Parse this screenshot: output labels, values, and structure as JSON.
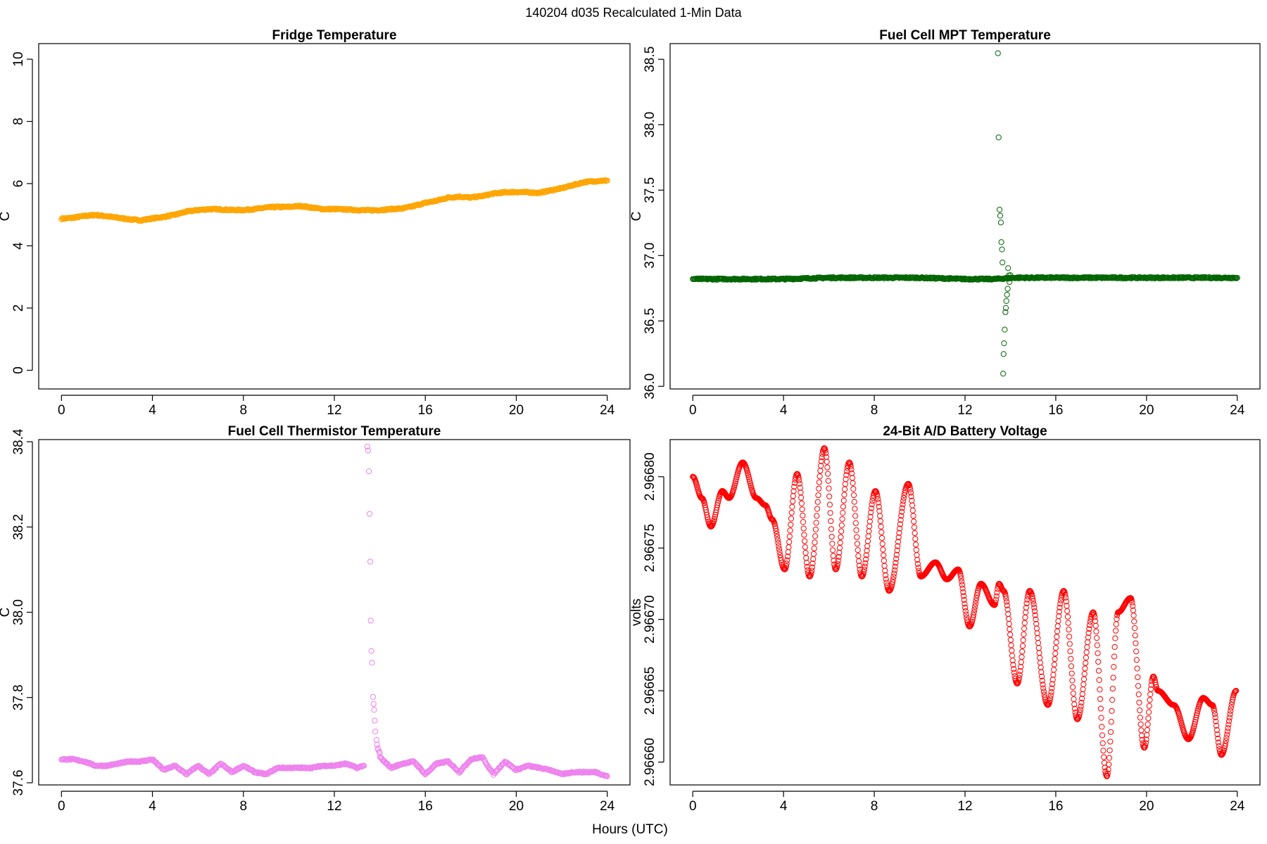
{
  "figure": {
    "title": "140204   d035   Recalculated 1-Min Data",
    "xlabel": "Hours (UTC)"
  },
  "chart_data": [
    {
      "type": "scatter",
      "title": "Fridge Temperature",
      "xlabel": "",
      "ylabel": "C",
      "xlim": [
        -1,
        25
      ],
      "ylim": [
        -0.6,
        10.5
      ],
      "xticks": [
        0,
        4,
        8,
        12,
        16,
        20,
        24
      ],
      "yticks": [
        0,
        2,
        4,
        6,
        8,
        10
      ],
      "yticklabels": [
        "0",
        "2",
        "4",
        "6",
        "8",
        "10"
      ],
      "color": "#FFA500",
      "grid": false,
      "series": [
        {
          "x": [
            0,
            0.5,
            1,
            1.5,
            2,
            2.5,
            3,
            3.5,
            4,
            4.5,
            5,
            5.5,
            6,
            6.5,
            7,
            7.5,
            8,
            8.5,
            9,
            9.5,
            10,
            10.5,
            11,
            11.5,
            12,
            12.5,
            13,
            13.5,
            14,
            14.5,
            15,
            15.5,
            16,
            16.5,
            17,
            17.5,
            18,
            18.5,
            19,
            19.5,
            20,
            20.5,
            21,
            21.5,
            22,
            22.5,
            23,
            23.5,
            24
          ],
          "y": [
            4.87,
            4.9,
            4.96,
            4.99,
            4.95,
            4.9,
            4.85,
            4.82,
            4.88,
            4.93,
            5.0,
            5.1,
            5.15,
            5.18,
            5.17,
            5.15,
            5.15,
            5.18,
            5.23,
            5.25,
            5.25,
            5.28,
            5.23,
            5.18,
            5.18,
            5.17,
            5.15,
            5.14,
            5.15,
            5.18,
            5.2,
            5.28,
            5.38,
            5.45,
            5.55,
            5.58,
            5.55,
            5.6,
            5.68,
            5.72,
            5.73,
            5.72,
            5.7,
            5.78,
            5.85,
            5.95,
            6.05,
            6.08,
            6.1
          ]
        }
      ]
    },
    {
      "type": "scatter",
      "title": "Fuel Cell MPT Temperature",
      "xlabel": "",
      "ylabel": "C",
      "xlim": [
        -1,
        25
      ],
      "ylim": [
        35.98,
        38.62
      ],
      "xticks": [
        0,
        4,
        8,
        12,
        16,
        20,
        24
      ],
      "yticks": [
        36.0,
        36.5,
        37.0,
        37.5,
        38.0,
        38.5
      ],
      "yticklabels": [
        "36.0",
        "36.5",
        "37.0",
        "37.5",
        "38.0",
        "38.5"
      ],
      "color": "#006400",
      "grid": false,
      "series": [
        {
          "x": [
            0,
            2,
            4,
            6,
            8,
            10,
            12,
            13.3,
            14.2,
            16,
            18,
            20,
            22,
            24
          ],
          "y": [
            36.82,
            36.82,
            36.82,
            36.83,
            36.83,
            36.83,
            36.82,
            36.82,
            36.83,
            36.83,
            36.83,
            36.83,
            36.83,
            36.83
          ]
        },
        {
          "x": [
            13.45,
            13.48,
            13.52,
            13.55,
            13.58,
            13.6,
            13.63,
            13.65,
            13.68,
            13.7,
            13.72,
            13.75,
            13.78,
            13.8,
            13.82,
            13.85,
            13.88,
            13.9,
            13.93,
            13.96,
            14.0
          ],
          "y": [
            38.55,
            37.9,
            37.35,
            37.3,
            37.25,
            37.1,
            37.05,
            36.95,
            36.1,
            36.25,
            36.33,
            36.43,
            36.57,
            36.6,
            36.65,
            36.7,
            36.75,
            36.9,
            36.85,
            36.8,
            36.85
          ]
        }
      ]
    },
    {
      "type": "scatter",
      "title": "Fuel Cell Thermistor Temperature",
      "xlabel": "",
      "ylabel": "C",
      "xlim": [
        -1,
        25
      ],
      "ylim": [
        37.595,
        38.405
      ],
      "xticks": [
        0,
        4,
        8,
        12,
        16,
        20,
        24
      ],
      "yticks": [
        37.6,
        37.8,
        38.0,
        38.2,
        38.4
      ],
      "yticklabels": [
        "37.6",
        "37.8",
        "38.0",
        "38.2",
        "38.4"
      ],
      "color": "#EE82EE",
      "grid": false,
      "series": [
        {
          "x": [
            0,
            0.5,
            1,
            1.5,
            2,
            2.5,
            3,
            3.5,
            4,
            4.5,
            5,
            5.5,
            6,
            6.5,
            7,
            7.5,
            8,
            8.5,
            9,
            9.5,
            10,
            10.5,
            11,
            11.5,
            12,
            12.5,
            13,
            13.3
          ],
          "y": [
            37.655,
            37.655,
            37.65,
            37.64,
            37.64,
            37.645,
            37.65,
            37.65,
            37.655,
            37.63,
            37.64,
            37.62,
            37.64,
            37.62,
            37.645,
            37.625,
            37.64,
            37.625,
            37.62,
            37.635,
            37.635,
            37.635,
            37.635,
            37.64,
            37.64,
            37.645,
            37.635,
            37.64
          ]
        },
        {
          "x": [
            13.45,
            13.48,
            13.52,
            13.55,
            13.58,
            13.6,
            13.63,
            13.66,
            13.7,
            13.75,
            13.8,
            13.85,
            13.9,
            14.0
          ],
          "y": [
            38.39,
            38.38,
            38.33,
            38.23,
            38.12,
            37.98,
            37.91,
            37.88,
            37.8,
            37.77,
            37.72,
            37.7,
            37.68,
            37.67
          ]
        },
        {
          "x": [
            14,
            14.5,
            15,
            15.5,
            16,
            16.5,
            17,
            17.5,
            18,
            18.5,
            19,
            19.5,
            20,
            20.5,
            21,
            21.5,
            22,
            22.5,
            23,
            23.5,
            24
          ],
          "y": [
            37.66,
            37.635,
            37.645,
            37.65,
            37.62,
            37.645,
            37.65,
            37.625,
            37.655,
            37.66,
            37.62,
            37.65,
            37.63,
            37.64,
            37.635,
            37.63,
            37.62,
            37.625,
            37.625,
            37.625,
            37.615
          ]
        }
      ]
    },
    {
      "type": "scatter",
      "title": "24-Bit A/D Battery Voltage",
      "xlabel": "",
      "ylabel": "volts",
      "xlim": [
        -1,
        25
      ],
      "ylim": [
        2.966584,
        2.966826
      ],
      "xticks": [
        0,
        4,
        8,
        12,
        16,
        20,
        24
      ],
      "yticks": [
        2.9666,
        2.96665,
        2.9667,
        2.96675,
        2.9668
      ],
      "yticklabels": [
        "2.96660",
        "2.96665",
        "2.96670",
        "2.96675",
        "2.96680"
      ],
      "color": "#FF0000",
      "grid": false,
      "series": [
        {
          "x": [
            0,
            0.4,
            0.8,
            1.3,
            1.6,
            2.2,
            2.8,
            3.2,
            3.5,
            4.05,
            4.6,
            5.15,
            5.8,
            6.3,
            6.9,
            7.45,
            8.05,
            8.65,
            9.5,
            10.05,
            10.7,
            11.2,
            11.7,
            12.2,
            12.7,
            13.3,
            13.5,
            13.7,
            14.3,
            14.85,
            15.65,
            16.35,
            16.95,
            17.65,
            18.25,
            18.75,
            19.3,
            19.9,
            20.3,
            20.5,
            21.2,
            21.85,
            22.5,
            22.9,
            23.3,
            23.95
          ],
          "y": [
            2.9668,
            2.966785,
            2.966765,
            2.96679,
            2.966785,
            2.96681,
            2.966785,
            2.96678,
            2.96677,
            2.966735,
            2.966802,
            2.96673,
            2.96682,
            2.966735,
            2.96681,
            2.96673,
            2.96679,
            2.96672,
            2.966795,
            2.96673,
            2.96674,
            2.966728,
            2.966735,
            2.966695,
            2.966725,
            2.96671,
            2.966725,
            2.96672,
            2.966655,
            2.96672,
            2.96664,
            2.96672,
            2.96663,
            2.966705,
            2.96659,
            2.966705,
            2.966715,
            2.96661,
            2.96666,
            2.96665,
            2.96664,
            2.966616,
            2.966645,
            2.96664,
            2.966605,
            2.96665
          ]
        }
      ]
    }
  ]
}
